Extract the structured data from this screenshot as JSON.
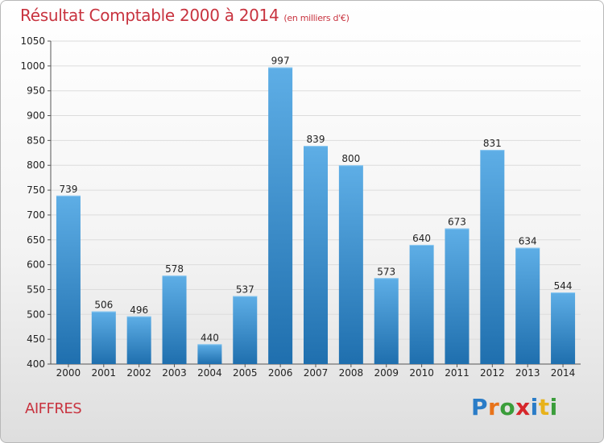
{
  "chart_data": {
    "type": "bar",
    "title": "Résultat Comptable 2000 à 2014",
    "unit_note": "(en milliers d'€)",
    "categories": [
      "2000",
      "2001",
      "2002",
      "2003",
      "2004",
      "2005",
      "2006",
      "2007",
      "2008",
      "2009",
      "2010",
      "2011",
      "2012",
      "2013",
      "2014"
    ],
    "values": [
      739,
      506,
      496,
      578,
      440,
      537,
      997,
      839,
      800,
      573,
      640,
      673,
      831,
      634,
      544
    ],
    "ylim": [
      400,
      1050
    ],
    "yticks": [
      400,
      450,
      500,
      550,
      600,
      650,
      700,
      750,
      800,
      850,
      900,
      950,
      1000,
      1050
    ],
    "xlabel": "",
    "ylabel": "",
    "grid": true
  },
  "commune_name": "AIFFRES",
  "brand": {
    "letters": [
      "P",
      "r",
      "o",
      "x",
      "i",
      "t",
      "i"
    ],
    "colors": [
      "#2a7cc7",
      "#e8731a",
      "#3a9d3a",
      "#d6262b",
      "#2a7cc7",
      "#e8b21a",
      "#3a9d3a"
    ]
  },
  "colors": {
    "bar_light": "#5eaee6",
    "bar_dark": "#1f6fae",
    "title": "#c8333f",
    "grid": "#dcdcdc"
  }
}
